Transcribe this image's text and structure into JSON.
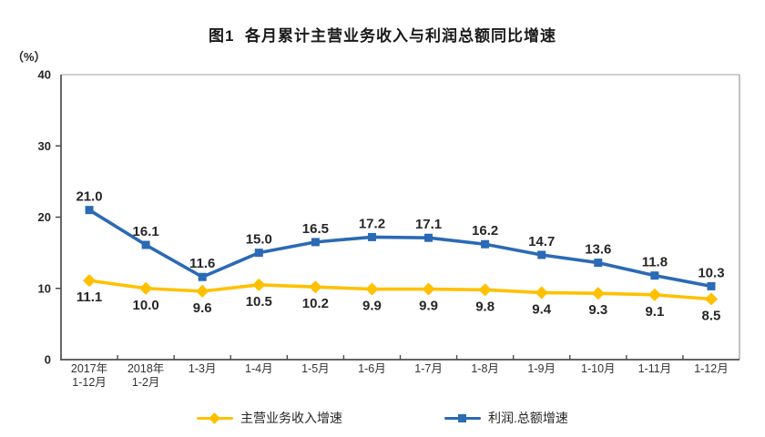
{
  "chart_data": {
    "type": "line",
    "title": "图1  各月累计主营业务收入与利润总额同比增速",
    "unit_label": "（%）",
    "categories": [
      "2017年\n1-12月",
      "2018年\n1-2月",
      "1-3月",
      "1-4月",
      "1-5月",
      "1-6月",
      "1-7月",
      "1-8月",
      "1-9月",
      "1-10月",
      "1-11月",
      "1-12月"
    ],
    "y_ticks": [
      0,
      10,
      20,
      30,
      40
    ],
    "ylim": [
      0,
      40
    ],
    "grid": "off",
    "legend_position": "bottom",
    "series": [
      {
        "name": "主营业务收入增速",
        "color": "#FFC000",
        "marker": "diamond",
        "label_position": "below",
        "values": [
          11.1,
          10.0,
          9.6,
          10.5,
          10.2,
          9.9,
          9.9,
          9.8,
          9.4,
          9.3,
          9.1,
          8.5
        ]
      },
      {
        "name": "利润.总额增速",
        "color": "#2B6AB5",
        "marker": "square",
        "label_position": "above",
        "values": [
          21.0,
          16.1,
          11.6,
          15.0,
          16.5,
          17.2,
          17.1,
          16.2,
          14.7,
          13.6,
          11.8,
          10.3
        ]
      }
    ],
    "colors": {
      "axis_dark": "#4d4d4d",
      "axis_light": "#b3b3b3",
      "label_text": "#262626",
      "tick_text": "#333333"
    }
  }
}
